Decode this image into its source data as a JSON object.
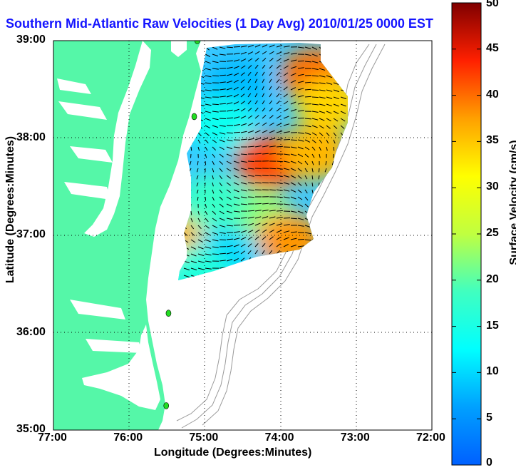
{
  "title": "Southern Mid-Atlantic Raw Velocities (1 Day Avg) 2010/01/25 0000 EST",
  "x_axis": {
    "label": "Longitude (Degrees:Minutes)",
    "ticks": [
      "77:00",
      "76:00",
      "75:00",
      "74:00",
      "73:00",
      "72:00"
    ]
  },
  "y_axis": {
    "label": "Latitude (Degrees:Minutes)",
    "ticks": [
      "39:00",
      "38:00",
      "37:00",
      "36:00",
      "35:00"
    ]
  },
  "colorbar": {
    "label": "Surface Velocity (cm/s)",
    "ticks": [
      "0",
      "5",
      "10",
      "15",
      "20",
      "25",
      "30",
      "35",
      "40",
      "45",
      "50"
    ],
    "min": 0,
    "max": 50,
    "colormap": "jet"
  },
  "colors": {
    "land": "#55f7a8",
    "background": "#ffffff",
    "title": "#1414ff",
    "station": "#22dd22",
    "bathymetry": "#9a9a9a",
    "grid": "#000000"
  },
  "map": {
    "lon_range": [
      -77,
      -72
    ],
    "lat_range": [
      35,
      39
    ],
    "gridlines": "dotted",
    "stations": [
      {
        "lon": -75.1,
        "lat": 39.0
      },
      {
        "lon": -75.14,
        "lat": 38.22
      },
      {
        "lon": -75.48,
        "lat": 36.2
      },
      {
        "lon": -75.51,
        "lat": 35.25
      }
    ],
    "velocity_regions": [
      {
        "lon": -74.55,
        "lat": 38.55,
        "speed": 8
      },
      {
        "lon": -74.8,
        "lat": 38.15,
        "speed": 14
      },
      {
        "lon": -74.15,
        "lat": 37.75,
        "speed": 42
      },
      {
        "lon": -73.55,
        "lat": 38.65,
        "speed": 40
      },
      {
        "lon": -73.35,
        "lat": 38.35,
        "speed": 34
      },
      {
        "lon": -73.55,
        "lat": 37.85,
        "speed": 36
      },
      {
        "lon": -74.3,
        "lat": 37.2,
        "speed": 22
      },
      {
        "lon": -73.9,
        "lat": 36.95,
        "speed": 38
      },
      {
        "lon": -75.1,
        "lat": 36.9,
        "speed": 12
      },
      {
        "lon": -75.4,
        "lat": 36.95,
        "speed": 36
      },
      {
        "lon": -74.7,
        "lat": 36.8,
        "speed": 10
      },
      {
        "lon": -74.9,
        "lat": 37.35,
        "speed": 18
      },
      {
        "lon": -75.1,
        "lat": 36.6,
        "speed": 16
      }
    ]
  }
}
